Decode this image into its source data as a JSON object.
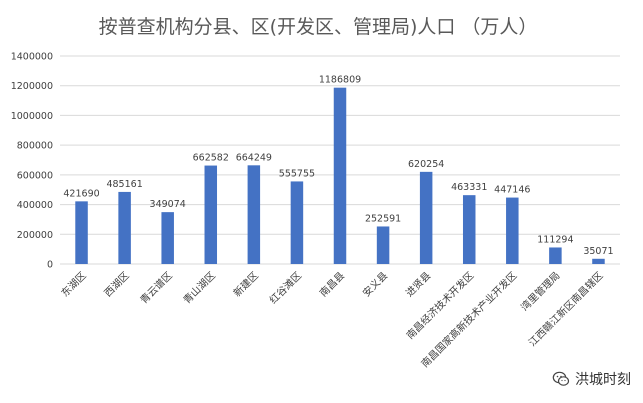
{
  "chart_data": {
    "type": "bar",
    "title": "按普查机构分县、区(开发区、管理局)人口 （万人）",
    "categories": [
      "东湖区",
      "西湖区",
      "青云谱区",
      "青山湖区",
      "新建区",
      "红谷滩区",
      "南昌县",
      "安义县",
      "进贤县",
      "南昌经济技术开发区",
      "南昌国家高新技术产业开发区",
      "湾里管理局",
      "江西赣江新区南昌辖区"
    ],
    "values": [
      421690,
      485161,
      349074,
      662582,
      664249,
      555755,
      1186809,
      252591,
      620254,
      463331,
      447146,
      111294,
      35071
    ],
    "ylim": [
      0,
      1400000
    ],
    "yticks": [
      0,
      200000,
      400000,
      600000,
      800000,
      1000000,
      1200000,
      1400000
    ],
    "grid": true,
    "bar_color": "#4472C4",
    "grid_color": "#D9D9D9"
  },
  "watermark": {
    "text": "洪城时刻",
    "icon": "wechat-icon"
  }
}
